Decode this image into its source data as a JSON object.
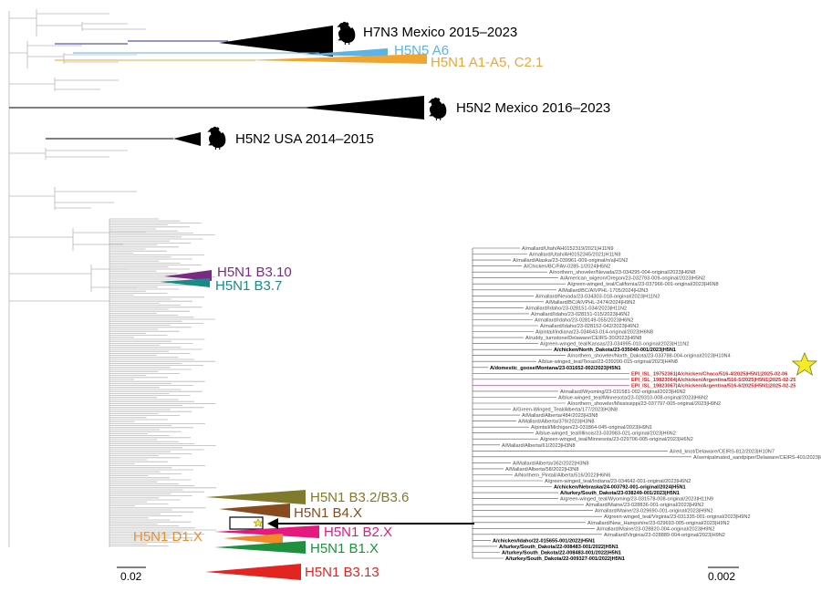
{
  "clades": [
    {
      "label": "H7N3 Mexico 2015–2023",
      "color": "#000000",
      "icon": "chicken-icon"
    },
    {
      "label": "H5N5 A6",
      "color": "#5cb3e6",
      "icon": ""
    },
    {
      "label": "H5N1 A1-A5, C2.1",
      "color": "#f2a431",
      "icon": ""
    },
    {
      "label": "H5N2 Mexico 2016–2023",
      "color": "#000000",
      "icon": "chicken-icon"
    },
    {
      "label": "H5N2 USA 2014–2015",
      "color": "#000000",
      "icon": "chicken-icon"
    },
    {
      "label": "H5N1 B3.10",
      "color": "#7b2a83",
      "icon": ""
    },
    {
      "label": "H5N1 B3.7",
      "color": "#1a8a86",
      "icon": ""
    },
    {
      "label": "H5N1 B3.2/B3.6",
      "color": "#7f7a2c",
      "icon": ""
    },
    {
      "label": "H5N1 B4.X",
      "color": "#8a4a1f",
      "icon": ""
    },
    {
      "label": "H5N1 B2.X",
      "color": "#e6197e",
      "icon": ""
    },
    {
      "label": "H5N1 D1.X",
      "color": "#f08a2a",
      "icon": ""
    },
    {
      "label": "H5N1 B1.X",
      "color": "#1f9040",
      "icon": ""
    },
    {
      "label": "H5N1 B3.13",
      "color": "#e32420",
      "icon": ""
    }
  ],
  "scale_bars": {
    "main": "0.02",
    "inset": "0.002"
  },
  "inset_leaves": [
    {
      "text": "A/mallard/Utah/AH0152319/2021|H11N9",
      "style": "normal"
    },
    {
      "text": "A/mallard/Utah/AH0152345/2021|H11N9",
      "style": "normal"
    },
    {
      "text": "A/mallard/Alaska/23-039961-009-original/n/a|H1N2",
      "style": "normal"
    },
    {
      "text": "A/Chicken/BC/FAV-0285-1/2024|H5N2",
      "style": "normal"
    },
    {
      "text": "A/northern_shoveler/Nevada/23-034295-004-original/2023|H6N8",
      "style": "normal"
    },
    {
      "text": "A/American_wigeon/Oregon/23-032793-009-original/2023|H5N2",
      "style": "normal"
    },
    {
      "text": "A/green-winged_teal/California/23-037966-001-original/2023|H6N8",
      "style": "normal"
    },
    {
      "text": "A/Mallard/BC/AIVPHL-1705/2024|H2N3",
      "style": "normal"
    },
    {
      "text": "A/mallard/Nevada/23-034303-018-original/2023|H11N2",
      "style": "normal"
    },
    {
      "text": "A/Mallard/BC/AIVPHL-2474/2024|H9N2",
      "style": "normal"
    },
    {
      "text": "A/mallard/Idaho/23-028151-034/2023|H11N2",
      "style": "normal"
    },
    {
      "text": "A/mallard/Idaho/23-028151-015/2023|H6N2",
      "style": "normal"
    },
    {
      "text": "A/mallard/Idaho/23-028149-055/2023|H6N2",
      "style": "normal"
    },
    {
      "text": "A/mallard/Idaho/23-028152-042/2023|H6N2",
      "style": "normal"
    },
    {
      "text": "A/pintail/Indiana/23-034643-014-original/2023|H6N8",
      "style": "normal"
    },
    {
      "text": "A/ruddy_turnstone/Delaware/CEIRS-30/2023|H6N8",
      "style": "normal"
    },
    {
      "text": "A/green-winged_teal/Kansas/23-034995-010-original/2023|H11N2",
      "style": "normal"
    },
    {
      "text": "A/chicken/North_Dakota/23-035040-001/2023|H5N1",
      "style": "bold"
    },
    {
      "text": "A/northern_shoveler/North_Dakota/23-033788-004-original/2023|H10N4",
      "style": "normal"
    },
    {
      "text": "A/blue-winged_teal/Texas/23-039200-015-original/2023|H4N8",
      "style": "normal"
    },
    {
      "text": "A/domestic_goose/Montana/23-031652-002/2023|H5N1",
      "style": "bold"
    },
    {
      "text": "EPI_ISL_19752361|A/chicken/Chaco/516-4/2025|H5N1|2025-02-06",
      "style": "red"
    },
    {
      "text": "EPI_ISL_19823064|A/chicken/Argentina/516-5/2025|H5N1|2025-02-25",
      "style": "red"
    },
    {
      "text": "EPI_ISL_19823067|A/chicken/Argentina/516-6/2025|H5N1|2025-02-25",
      "style": "red"
    },
    {
      "text": "A/mallard/Wyoming/23-031581-002-original/2023|H6N2",
      "style": "normal"
    },
    {
      "text": "A/blue-winged_teal/Minnesota/23-029310-008-original/2023|H6N2",
      "style": "normal"
    },
    {
      "text": "A/northern_shoveler/Mississippi/23-037797-005-original/2023|H9N2",
      "style": "normal"
    },
    {
      "text": "A/Green-Winged_Teal/Alberta/177/2023|H3N8",
      "style": "normal"
    },
    {
      "text": "A/Mallard/Alberta/484/2023|H3N8",
      "style": "normal"
    },
    {
      "text": "A/Mallard/Alberta/379/2023|H3N8",
      "style": "normal"
    },
    {
      "text": "A/pintail/Michigan/23-031864-045-original/2023|H9N1",
      "style": "normal"
    },
    {
      "text": "A/blue-winged_teal/Illinois/23-033983-021-original/2023|H6N2",
      "style": "normal"
    },
    {
      "text": "A/green-winged_teal/Minnesota/23-029706-005-original/2023|H6N2",
      "style": "normal"
    },
    {
      "text": "A/Mallard/Alberta/61/2023|H3N8",
      "style": "normal"
    },
    {
      "text": "A/red_knot/Delaware/CEIRS-812/2023|H10N7",
      "style": "normal"
    },
    {
      "text": "A/semipalmated_sandpiper/Delaware/CEIRS-401/2023|H10N7",
      "style": "normal"
    },
    {
      "text": "A/Mallard/Alberta/362/2022|H3N8",
      "style": "normal"
    },
    {
      "text": "A/Mallard/Alberta/58/2022|H3N8",
      "style": "normal"
    },
    {
      "text": "A/Northern_Pintail/Alberta/516/2022|H6N6",
      "style": "normal"
    },
    {
      "text": "A/green-winged_teal/Indiana/23-034642-001-original/2023|H6N2",
      "style": "normal"
    },
    {
      "text": "A/chicken/Nebraska/24-003792-001-original/2024|H5N1",
      "style": "bold"
    },
    {
      "text": "A/turkey/South_Dakota/23-038249-001/2023|H5N1",
      "style": "bold"
    },
    {
      "text": "A/green-winged_teal/Wyoming/23-031578-008-original/2023|H11N9",
      "style": "normal"
    },
    {
      "text": "A/mallard/Maine/23-028836-001-original/2023|H9N2",
      "style": "normal"
    },
    {
      "text": "A/mallard/Maine/23-029690-001-original/2023|H9N2",
      "style": "normal"
    },
    {
      "text": "A/green-winged_teal/Virginia/23-031335-001-original/2023|H9N2",
      "style": "normal"
    },
    {
      "text": "A/mallard/New_Hampshire/23-029693-005-original/2023|H9N2",
      "style": "normal"
    },
    {
      "text": "A/mallard/Maine/23-028820-004-original/2023|H9N2",
      "style": "normal"
    },
    {
      "text": "A/mallard/Virginia/23-028889-004-original/2023|H9N2",
      "style": "normal"
    },
    {
      "text": "A/chicken/Idaho/22-015655-001/2022|H5N1",
      "style": "bold"
    },
    {
      "text": "A/turkey/South_Dakota/22-008483-001/2022|H5N1",
      "style": "bold"
    },
    {
      "text": "A/turkey/South_Dakota/22-008483-001/2022|H5N1",
      "style": "bold"
    },
    {
      "text": "A/turkey/South_Dakota/22-009327-001/2022|H5N1",
      "style": "bold"
    }
  ]
}
